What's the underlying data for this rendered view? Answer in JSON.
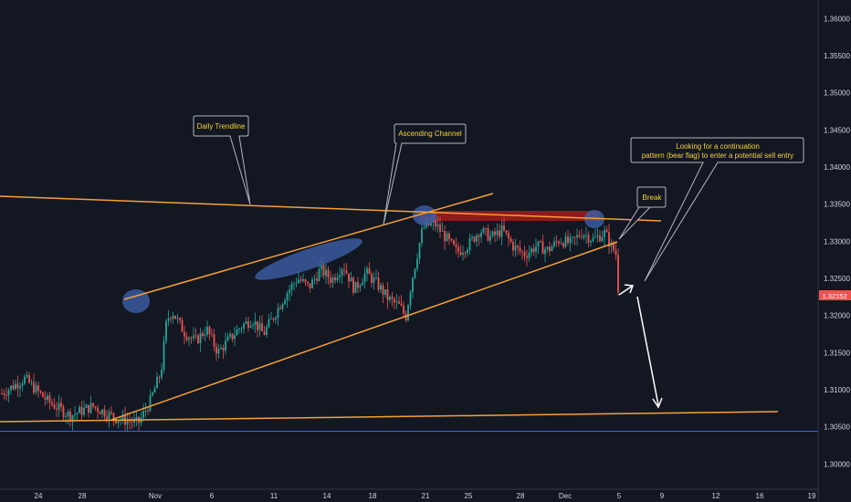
{
  "chart_data": {
    "type": "candlestick",
    "x_tick_labels": [
      "24",
      "28",
      "Nov",
      "6",
      "11",
      "14",
      "18",
      "21",
      "25",
      "28",
      "Dec",
      "5",
      "9",
      "12",
      "16",
      "19"
    ],
    "y_tick_labels": [
      "1.36000",
      "1.35500",
      "1.35000",
      "1.34500",
      "1.34000",
      "1.33500",
      "1.33000",
      "1.32500",
      "1.32000",
      "1.31500",
      "1.31000",
      "1.30500",
      "1.30000"
    ],
    "y_ticks": [
      1.36,
      1.355,
      1.35,
      1.345,
      1.34,
      1.335,
      1.33,
      1.325,
      1.32,
      1.315,
      1.31,
      1.305,
      1.3
    ],
    "ylim": [
      1.2966,
      1.3625
    ],
    "current_price_label": "1.32152",
    "current_price": 1.32152,
    "support_price": 1.3044,
    "price_path": [
      [
        0,
        1.3095
      ],
      [
        4,
        1.3115
      ],
      [
        8,
        1.3085
      ],
      [
        12,
        1.3065
      ],
      [
        16,
        1.3078
      ],
      [
        20,
        1.3062
      ],
      [
        24,
        1.3055
      ],
      [
        26,
        1.3083
      ],
      [
        28,
        1.3125
      ],
      [
        29,
        1.3195
      ],
      [
        30,
        1.3205
      ],
      [
        32,
        1.3178
      ],
      [
        34,
        1.3165
      ],
      [
        36,
        1.3182
      ],
      [
        38,
        1.315
      ],
      [
        40,
        1.3168
      ],
      [
        42,
        1.3185
      ],
      [
        44,
        1.3195
      ],
      [
        46,
        1.3175
      ],
      [
        48,
        1.3202
      ],
      [
        50,
        1.323
      ],
      [
        52,
        1.325
      ],
      [
        54,
        1.3238
      ],
      [
        56,
        1.3262
      ],
      [
        58,
        1.3248
      ],
      [
        60,
        1.3268
      ],
      [
        62,
        1.3235
      ],
      [
        64,
        1.3258
      ],
      [
        66,
        1.3242
      ],
      [
        68,
        1.3222
      ],
      [
        70,
        1.3212
      ],
      [
        71,
        1.3198
      ],
      [
        72,
        1.3245
      ],
      [
        73,
        1.3282
      ],
      [
        74,
        1.3318
      ],
      [
        76,
        1.3325
      ],
      [
        78,
        1.3305
      ],
      [
        80,
        1.3285
      ],
      [
        82,
        1.3295
      ],
      [
        84,
        1.3315
      ],
      [
        86,
        1.3305
      ],
      [
        88,
        1.3315
      ],
      [
        90,
        1.3292
      ],
      [
        92,
        1.3282
      ],
      [
        94,
        1.3294
      ],
      [
        96,
        1.3288
      ],
      [
        98,
        1.3302
      ],
      [
        100,
        1.3297
      ],
      [
        102,
        1.3312
      ],
      [
        104,
        1.3302
      ],
      [
        106,
        1.3312
      ],
      [
        107,
        1.3295
      ],
      [
        108,
        1.3282
      ],
      [
        108.5,
        1.3215
      ]
    ],
    "annotations": {
      "daily_trendline_label": "Daily Trendline",
      "ascending_channel_label": "Ascending Channel",
      "break_label": "Break",
      "note_line1": "Looking for a continuation",
      "note_line2": "pattern (bear flag) to enter a potential sell entry"
    },
    "colors": {
      "background": "#131722",
      "up_candle": "#26a69a",
      "down_candle": "#ef5350",
      "trendline": "#f5a035",
      "support_line": "#2962ff",
      "callout_text": "#f5d33a",
      "resistance_zone": "#b71c1c",
      "highlight": "#3d5fa8",
      "price_tag": "#ef5350"
    }
  }
}
